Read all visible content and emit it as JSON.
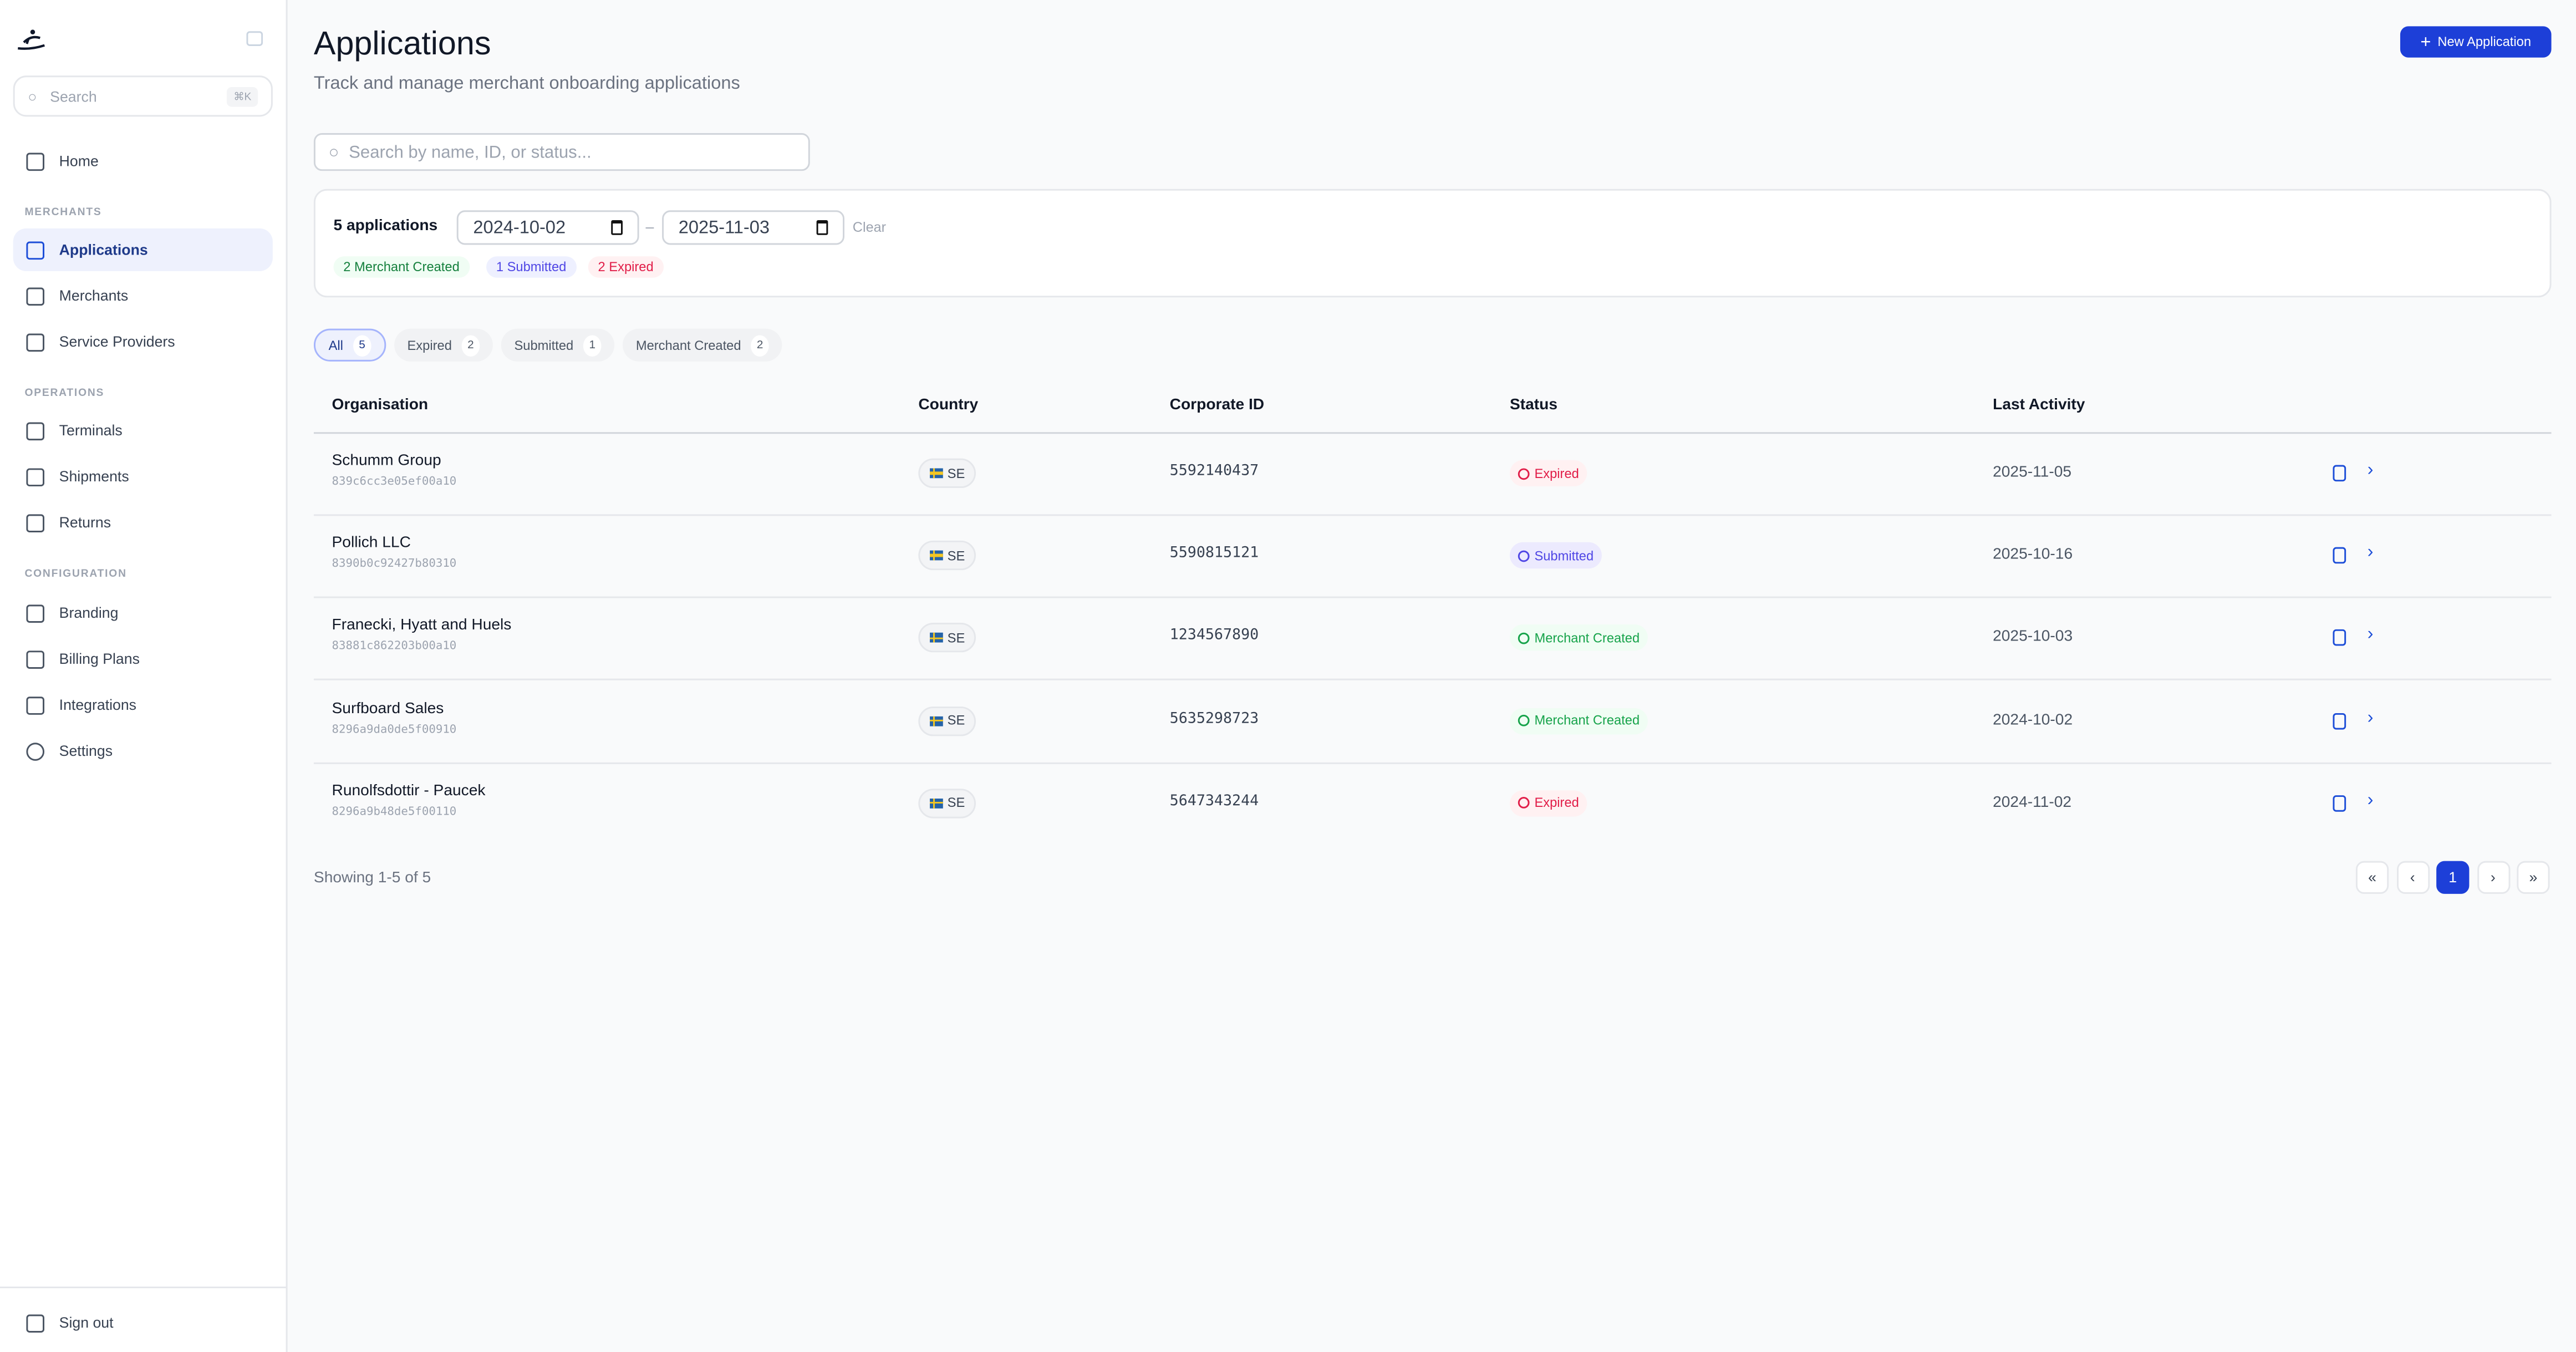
{
  "sidebar": {
    "search_placeholder": "Search",
    "search_shortcut": "⌘K",
    "home": "Home",
    "sections": [
      {
        "label": "MERCHANTS",
        "items": [
          "Applications",
          "Merchants",
          "Service Providers"
        ]
      },
      {
        "label": "OPERATIONS",
        "items": [
          "Terminals",
          "Shipments",
          "Returns"
        ]
      },
      {
        "label": "CONFIGURATION",
        "items": [
          "Branding",
          "Billing Plans",
          "Integrations",
          "Settings"
        ]
      }
    ],
    "active": "Applications",
    "sign_out": "Sign out"
  },
  "header": {
    "title": "Applications",
    "subtitle": "Track and manage merchant onboarding applications",
    "new_button": "New Application"
  },
  "search": {
    "placeholder": "Search by name, ID, or status..."
  },
  "filters": {
    "count_label": "5 applications",
    "date_from": "2024-10-02",
    "date_to": "2025-11-03",
    "separator": "–",
    "clear": "Clear",
    "summary": [
      {
        "label": "2 Merchant Created",
        "color": "#15803d"
      },
      {
        "label": "1 Submitted",
        "color": "#4f46e5"
      },
      {
        "label": "2 Expired",
        "color": "#e11d48"
      }
    ]
  },
  "tabs": [
    {
      "label": "All",
      "count": "5"
    },
    {
      "label": "Expired",
      "count": "2"
    },
    {
      "label": "Submitted",
      "count": "1"
    },
    {
      "label": "Merchant Created",
      "count": "2"
    }
  ],
  "table": {
    "columns": [
      "Organisation",
      "Country",
      "Corporate ID",
      "Status",
      "Last Activity"
    ],
    "rows": [
      {
        "org": "Schumm Group",
        "id": "839c6cc3e05ef00a10",
        "country": "SE",
        "corporate_id": "5592140437",
        "status": "Expired",
        "last_activity": "2025-11-05"
      },
      {
        "org": "Pollich LLC",
        "id": "8390b0c92427b80310",
        "country": "SE",
        "corporate_id": "5590815121",
        "status": "Submitted",
        "last_activity": "2025-10-16"
      },
      {
        "org": "Franecki, Hyatt and Huels",
        "id": "83881c862203b00a10",
        "country": "SE",
        "corporate_id": "1234567890",
        "status": "Merchant Created",
        "last_activity": "2025-10-03"
      },
      {
        "org": "Surfboard Sales",
        "id": "8296a9da0de5f00910",
        "country": "SE",
        "corporate_id": "5635298723",
        "status": "Merchant Created",
        "last_activity": "2024-10-02"
      },
      {
        "org": "Runolfsdottir - Paucek",
        "id": "8296a9b48de5f00110",
        "country": "SE",
        "corporate_id": "5647343244",
        "status": "Expired",
        "last_activity": "2024-11-02"
      }
    ]
  },
  "footer": {
    "showing": "Showing 1-5 of 5",
    "current_page": "1",
    "first": "«",
    "prev": "‹",
    "next": "›",
    "last": "»"
  }
}
